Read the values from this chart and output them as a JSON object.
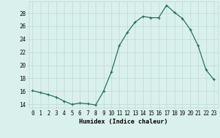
{
  "x": [
    0,
    1,
    2,
    3,
    4,
    5,
    6,
    7,
    8,
    9,
    10,
    11,
    12,
    13,
    14,
    15,
    16,
    17,
    18,
    19,
    20,
    21,
    22,
    23
  ],
  "y": [
    16.1,
    15.8,
    15.5,
    15.1,
    14.5,
    14.0,
    14.2,
    14.1,
    13.9,
    16.0,
    19.0,
    23.0,
    25.0,
    26.6,
    27.5,
    27.3,
    27.3,
    29.2,
    28.1,
    27.2,
    25.5,
    23.0,
    19.3,
    17.8
  ],
  "line_color": "#1a6b5a",
  "bg_color": "#daf0ec",
  "grid_color": "#b8d8d4",
  "xlabel": "Humidex (Indice chaleur)",
  "ylim": [
    13.5,
    29.8
  ],
  "xlim": [
    -0.5,
    23.5
  ],
  "yticks": [
    14,
    16,
    18,
    20,
    22,
    24,
    26,
    28
  ],
  "xticks": [
    0,
    1,
    2,
    3,
    4,
    5,
    6,
    7,
    8,
    9,
    10,
    11,
    12,
    13,
    14,
    15,
    16,
    17,
    18,
    19,
    20,
    21,
    22,
    23
  ],
  "tick_fontsize": 5.5,
  "xlabel_fontsize": 6.5,
  "marker": "+",
  "markersize": 3.5,
  "linewidth": 0.9
}
